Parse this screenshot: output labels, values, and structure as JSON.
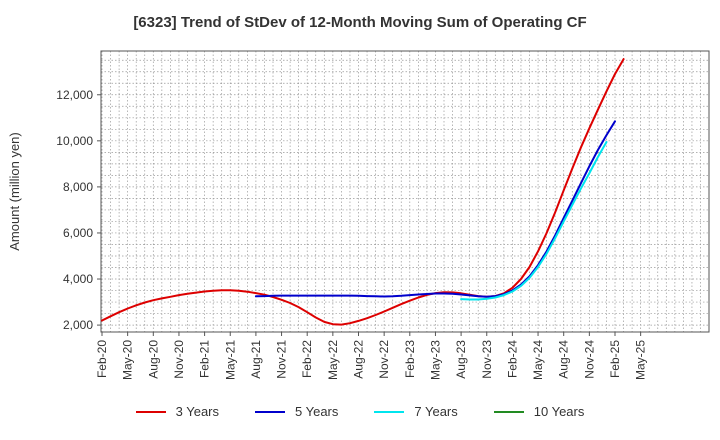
{
  "chart_data": {
    "type": "line",
    "title": "[6323]  Trend of StDev of 12-Month Moving Sum of Operating CF",
    "xlabel": "",
    "ylabel": "Amount (million yen)",
    "x_ticks": [
      "Feb-20",
      "May-20",
      "Aug-20",
      "Nov-20",
      "Feb-21",
      "May-21",
      "Aug-21",
      "Nov-21",
      "Feb-22",
      "May-22",
      "Aug-22",
      "Nov-22",
      "Feb-23",
      "May-23",
      "Aug-23",
      "Nov-23",
      "Feb-24",
      "May-24",
      "Aug-24",
      "Nov-24",
      "Feb-25",
      "May-25"
    ],
    "y_ticks": [
      2000,
      4000,
      6000,
      8000,
      10000,
      12000
    ],
    "y_tick_labels": [
      "2,000",
      "4,000",
      "6,000",
      "8,000",
      "10,000",
      "12,000"
    ],
    "ylim": [
      1700,
      13900
    ],
    "grid": true,
    "legend_position": "bottom",
    "series": [
      {
        "name": "3 Years",
        "color": "#dd0000",
        "start_index": 0,
        "values": [
          2200,
          2380,
          2560,
          2720,
          2860,
          2980,
          3080,
          3160,
          3230,
          3300,
          3360,
          3410,
          3460,
          3490,
          3510,
          3510,
          3490,
          3450,
          3390,
          3320,
          3220,
          3100,
          2960,
          2780,
          2560,
          2330,
          2140,
          2040,
          2020,
          2080,
          2180,
          2300,
          2440,
          2590,
          2750,
          2910,
          3060,
          3200,
          3310,
          3390,
          3430,
          3420,
          3380,
          3320,
          3260,
          3230,
          3260,
          3380,
          3620,
          4000,
          4520,
          5200,
          6000,
          6900,
          7850,
          8800,
          9700,
          10550,
          11350,
          12150,
          12900,
          13550
        ]
      },
      {
        "name": "5 Years",
        "color": "#0000cc",
        "start_index": 18,
        "values": [
          3250,
          3260,
          3270,
          3280,
          3280,
          3280,
          3280,
          3280,
          3280,
          3280,
          3280,
          3280,
          3270,
          3260,
          3250,
          3240,
          3250,
          3270,
          3300,
          3330,
          3350,
          3370,
          3370,
          3360,
          3330,
          3290,
          3250,
          3230,
          3260,
          3340,
          3500,
          3760,
          4120,
          4600,
          5200,
          5900,
          6650,
          7400,
          8150,
          8900,
          9600,
          10250,
          10850
        ]
      },
      {
        "name": "7 Years",
        "color": "#00e5ee",
        "start_index": 42,
        "values": [
          3130,
          3110,
          3110,
          3140,
          3200,
          3300,
          3460,
          3700,
          4050,
          4520,
          5100,
          5780,
          6500,
          7220,
          7920,
          8600,
          9300,
          9950
        ]
      },
      {
        "name": "10 Years",
        "color": "#228b22",
        "start_index": 0,
        "values": []
      }
    ]
  }
}
